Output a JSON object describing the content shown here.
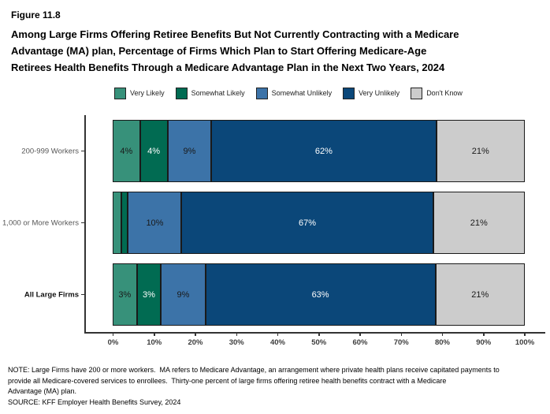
{
  "header": {
    "figure_label": "Figure 11.8",
    "title_lines": [
      "Among Large Firms Offering Retiree Benefits But Not Currently Contracting with a Medicare",
      "Advantage (MA) plan, Percentage of Firms Which Plan to Start Offering Medicare-Age",
      "Retirees Health Benefits Through a Medicare Advantage Plan in the Next Two Years, 2024"
    ]
  },
  "chart_data": {
    "type": "bar",
    "variant": "horizontal-stacked",
    "title": "Figure 11.8",
    "xlabel": "",
    "ylabel": "",
    "xlim": [
      0,
      100
    ],
    "grid": false,
    "legend_position": "top",
    "categories": [
      "200-999 Workers",
      "1,000 or More Workers",
      "All Large Firms"
    ],
    "bold_category": "All Large Firms",
    "series": [
      {
        "name": "Very Likely",
        "color": "#37917A",
        "text_color": "#1a1a1a",
        "values": [
          4,
          2,
          3
        ],
        "labels": [
          "4%",
          "",
          "3%"
        ]
      },
      {
        "name": "Somewhat Likely",
        "color": "#016B52",
        "text_color": "#ffffff",
        "values": [
          4,
          1.5,
          3
        ],
        "labels": [
          "4%",
          "",
          "3%"
        ]
      },
      {
        "name": "Somewhat Unlikely",
        "color": "#3C73A8",
        "text_color": "#1a1a1a",
        "values": [
          9,
          10,
          9
        ],
        "labels": [
          "9%",
          "10%",
          "9%"
        ]
      },
      {
        "name": "Very Unlikely",
        "color": "#0B4779",
        "text_color": "#ffffff",
        "values": [
          62,
          67,
          63
        ],
        "labels": [
          "62%",
          "67%",
          "63%"
        ]
      },
      {
        "name": "Don't Know",
        "color": "#CCCCCC",
        "text_color": "#1a1a1a",
        "values": [
          21,
          21,
          21
        ],
        "labels": [
          "21%",
          "21%",
          "21%"
        ]
      }
    ],
    "x_ticks": [
      "0%",
      "10%",
      "20%",
      "30%",
      "40%",
      "50%",
      "60%",
      "70%",
      "80%",
      "90%",
      "100%"
    ]
  },
  "notes": {
    "note_lines": [
      "NOTE: Large Firms have 200 or more workers.  MA refers to Medicare Advantage, an arrangement where private health plans receive capitated payments to",
      "provide all Medicare-covered services to enrollees.  Thirty-one percent of large firms offering retiree health benefits contract with a Medicare",
      "Advantage (MA) plan."
    ],
    "source": "SOURCE: KFF Employer Health Benefits Survey, 2024"
  }
}
